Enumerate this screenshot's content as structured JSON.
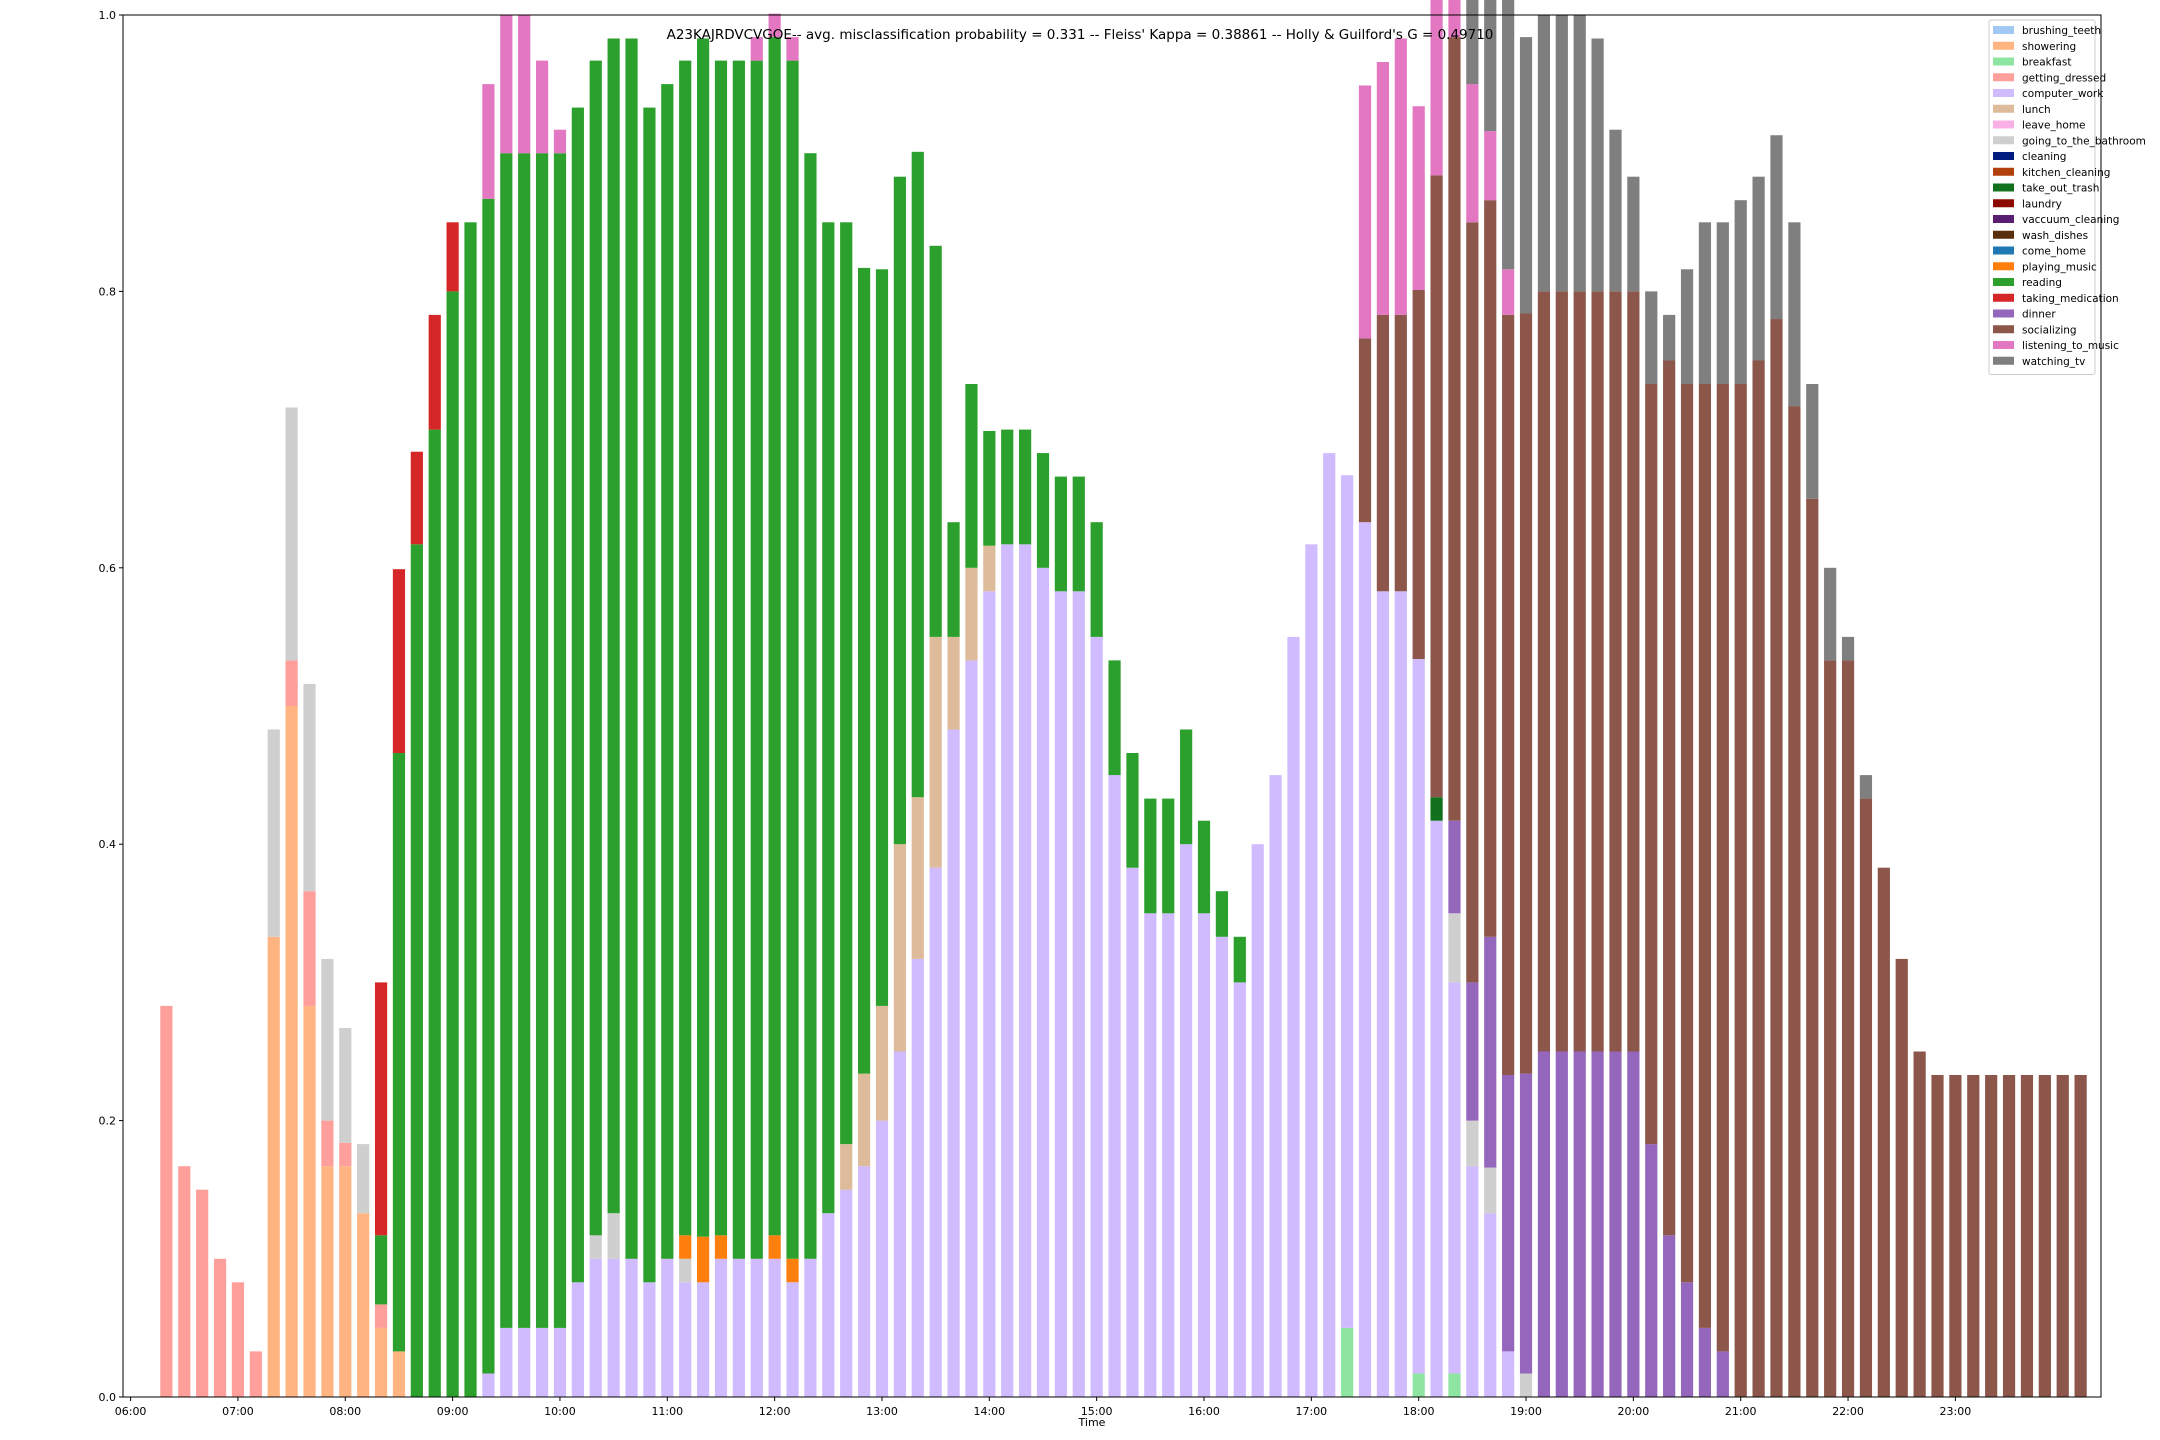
{
  "chart_data": {
    "type": "bar",
    "stacked": true,
    "title": "A23KAJRDVCVGOE-- avg. misclassification probability = 0.331 -- Fleiss' Kappa = 0.38861 -- Holly & Guilford's G = 0.49710",
    "xlabel": "Time",
    "ylabel": "",
    "ylim": [
      0,
      1.0
    ],
    "yticks": [
      "0.0",
      "0.2",
      "0.4",
      "0.6",
      "0.8",
      "1.0"
    ],
    "xticks": [
      "06:00",
      "07:00",
      "08:00",
      "09:00",
      "10:00",
      "11:00",
      "12:00",
      "13:00",
      "14:00",
      "15:00",
      "16:00",
      "17:00",
      "18:00",
      "19:00",
      "20:00",
      "21:00",
      "22:00",
      "23:00"
    ],
    "x_start": "06:00",
    "bin_minutes": 10,
    "legend_position": "top-right",
    "grid": false,
    "series": [
      {
        "name": "brushing_teeth",
        "color": "#a1c9f4",
        "values": []
      },
      {
        "name": "showering",
        "color": "#ffb482",
        "values": [
          [
            7,
            0.333
          ],
          [
            8,
            0.5
          ],
          [
            9,
            0.283
          ],
          [
            10,
            0.167
          ],
          [
            11,
            0.167
          ],
          [
            12,
            0.133
          ],
          [
            13,
            0.05
          ],
          [
            14,
            0.033
          ]
        ]
      },
      {
        "name": "breakfast",
        "color": "#8de5a1",
        "values": [
          [
            67,
            0.05
          ],
          [
            71,
            0.017
          ],
          [
            73,
            0.017
          ]
        ]
      },
      {
        "name": "getting_dressed",
        "color": "#ff9f9b",
        "values": [
          [
            1,
            0.283
          ],
          [
            2,
            0.167
          ],
          [
            3,
            0.15
          ],
          [
            4,
            0.1
          ],
          [
            5,
            0.083
          ],
          [
            6,
            0.033
          ],
          [
            8,
            0.033
          ],
          [
            9,
            0.083
          ],
          [
            10,
            0.033
          ],
          [
            11,
            0.017
          ],
          [
            13,
            0.017
          ]
        ]
      },
      {
        "name": "computer_work",
        "color": "#d0bbff",
        "values": [
          [
            19,
            0.017
          ],
          [
            20,
            0.05
          ],
          [
            21,
            0.05
          ],
          [
            22,
            0.05
          ],
          [
            23,
            0.05
          ],
          [
            24,
            0.083
          ],
          [
            25,
            0.1
          ],
          [
            26,
            0.1
          ],
          [
            27,
            0.1
          ],
          [
            28,
            0.083
          ],
          [
            29,
            0.1
          ],
          [
            30,
            0.083
          ],
          [
            31,
            0.083
          ],
          [
            32,
            0.1
          ],
          [
            33,
            0.1
          ],
          [
            34,
            0.1
          ],
          [
            35,
            0.1
          ],
          [
            36,
            0.083
          ],
          [
            37,
            0.1
          ],
          [
            38,
            0.133
          ],
          [
            39,
            0.15
          ],
          [
            40,
            0.167
          ],
          [
            41,
            0.2
          ],
          [
            42,
            0.25
          ],
          [
            43,
            0.317
          ],
          [
            44,
            0.383
          ],
          [
            45,
            0.483
          ],
          [
            46,
            0.533
          ],
          [
            47,
            0.583
          ],
          [
            48,
            0.617
          ],
          [
            49,
            0.617
          ],
          [
            50,
            0.6
          ],
          [
            51,
            0.583
          ],
          [
            52,
            0.583
          ],
          [
            53,
            0.55
          ],
          [
            54,
            0.45
          ],
          [
            55,
            0.383
          ],
          [
            56,
            0.35
          ],
          [
            57,
            0.35
          ],
          [
            58,
            0.4
          ],
          [
            59,
            0.35
          ],
          [
            60,
            0.333
          ],
          [
            61,
            0.3
          ],
          [
            62,
            0.4
          ],
          [
            63,
            0.45
          ],
          [
            64,
            0.55
          ],
          [
            65,
            0.617
          ],
          [
            66,
            0.683
          ],
          [
            67,
            0.617
          ],
          [
            68,
            0.633
          ],
          [
            69,
            0.583
          ],
          [
            70,
            0.583
          ],
          [
            71,
            0.517
          ],
          [
            72,
            0.417
          ],
          [
            73,
            0.283
          ],
          [
            74,
            0.167
          ],
          [
            75,
            0.133
          ],
          [
            76,
            0.033
          ]
        ]
      },
      {
        "name": "lunch",
        "color": "#debb9b",
        "values": [
          [
            39,
            0.033
          ],
          [
            40,
            0.067
          ],
          [
            41,
            0.083
          ],
          [
            42,
            0.15
          ],
          [
            43,
            0.117
          ],
          [
            44,
            0.167
          ],
          [
            45,
            0.067
          ],
          [
            46,
            0.067
          ],
          [
            47,
            0.033
          ],
          [
            48,
            0.0
          ]
        ]
      },
      {
        "name": "leave_home",
        "color": "#fab0e4",
        "values": []
      },
      {
        "name": "going_to_the_bathroom",
        "color": "#cfcfcf",
        "values": [
          [
            7,
            0.15
          ],
          [
            8,
            0.183
          ],
          [
            9,
            0.15
          ],
          [
            10,
            0.117
          ],
          [
            11,
            0.083
          ],
          [
            12,
            0.05
          ],
          [
            25,
            0.017
          ],
          [
            26,
            0.033
          ],
          [
            30,
            0.017
          ],
          [
            73,
            0.05
          ],
          [
            74,
            0.033
          ],
          [
            75,
            0.033
          ],
          [
            77,
            0.017
          ]
        ]
      },
      {
        "name": "cleaning",
        "color": "#001c7f",
        "values": []
      },
      {
        "name": "kitchen_cleaning",
        "color": "#b1400d",
        "values": []
      },
      {
        "name": "take_out_trash",
        "color": "#12711c",
        "values": [
          [
            72,
            0.017
          ]
        ]
      },
      {
        "name": "laundry",
        "color": "#8c0800",
        "values": []
      },
      {
        "name": "vaccuum_cleaning",
        "color": "#591e71",
        "values": []
      },
      {
        "name": "wash_dishes",
        "color": "#592f0d",
        "values": []
      },
      {
        "name": "come_home",
        "color": "#1f77b4",
        "values": []
      },
      {
        "name": "playing_music",
        "color": "#ff7f0e",
        "values": [
          [
            30,
            0.017
          ],
          [
            31,
            0.033
          ],
          [
            32,
            0.017
          ],
          [
            35,
            0.017
          ],
          [
            36,
            0.017
          ]
        ]
      },
      {
        "name": "reading",
        "color": "#2ca02c",
        "values": [
          [
            13,
            0.05
          ],
          [
            14,
            0.433
          ],
          [
            15,
            0.617
          ],
          [
            16,
            0.7
          ],
          [
            17,
            0.8
          ],
          [
            18,
            0.85
          ],
          [
            19,
            0.85
          ],
          [
            20,
            0.85
          ],
          [
            21,
            0.85
          ],
          [
            22,
            0.85
          ],
          [
            23,
            0.85
          ],
          [
            24,
            0.85
          ],
          [
            25,
            0.85
          ],
          [
            26,
            0.85
          ],
          [
            27,
            0.883
          ],
          [
            28,
            0.85
          ],
          [
            29,
            0.85
          ],
          [
            30,
            0.85
          ],
          [
            31,
            0.867
          ],
          [
            32,
            0.85
          ],
          [
            33,
            0.867
          ],
          [
            34,
            0.867
          ],
          [
            35,
            0.867
          ],
          [
            36,
            0.867
          ],
          [
            37,
            0.8
          ],
          [
            38,
            0.717
          ],
          [
            39,
            0.667
          ],
          [
            40,
            0.583
          ],
          [
            41,
            0.533
          ],
          [
            42,
            0.483
          ],
          [
            43,
            0.467
          ],
          [
            44,
            0.283
          ],
          [
            45,
            0.083
          ],
          [
            46,
            0.133
          ],
          [
            47,
            0.083
          ],
          [
            48,
            0.083
          ],
          [
            49,
            0.083
          ],
          [
            50,
            0.083
          ],
          [
            51,
            0.083
          ],
          [
            52,
            0.083
          ],
          [
            53,
            0.083
          ],
          [
            54,
            0.083
          ],
          [
            55,
            0.083
          ],
          [
            56,
            0.083
          ],
          [
            57,
            0.083
          ],
          [
            58,
            0.083
          ],
          [
            59,
            0.067
          ],
          [
            60,
            0.033
          ],
          [
            61,
            0.033
          ]
        ]
      },
      {
        "name": "taking_medication",
        "color": "#d62728",
        "values": [
          [
            13,
            0.183
          ],
          [
            14,
            0.133
          ],
          [
            15,
            0.067
          ],
          [
            16,
            0.083
          ],
          [
            17,
            0.05
          ]
        ]
      },
      {
        "name": "dinner",
        "color": "#9467bd",
        "values": [
          [
            73,
            0.067
          ],
          [
            74,
            0.1
          ],
          [
            75,
            0.167
          ],
          [
            76,
            0.2
          ],
          [
            77,
            0.217
          ],
          [
            78,
            0.25
          ],
          [
            79,
            0.25
          ],
          [
            80,
            0.25
          ],
          [
            81,
            0.25
          ],
          [
            82,
            0.25
          ],
          [
            83,
            0.25
          ],
          [
            84,
            0.183
          ],
          [
            85,
            0.117
          ],
          [
            86,
            0.083
          ],
          [
            87,
            0.05
          ],
          [
            88,
            0.033
          ]
        ]
      },
      {
        "name": "socializing",
        "color": "#8c564b",
        "values": [
          [
            68,
            0.133
          ],
          [
            69,
            0.2
          ],
          [
            70,
            0.2
          ],
          [
            71,
            0.267
          ],
          [
            72,
            0.45
          ],
          [
            73,
            0.567
          ],
          [
            74,
            0.55
          ],
          [
            75,
            0.533
          ],
          [
            76,
            0.55
          ],
          [
            77,
            0.55
          ],
          [
            78,
            0.55
          ],
          [
            79,
            0.55
          ],
          [
            80,
            0.55
          ],
          [
            81,
            0.55
          ],
          [
            82,
            0.55
          ],
          [
            83,
            0.55
          ],
          [
            84,
            0.55
          ],
          [
            85,
            0.633
          ],
          [
            86,
            0.65
          ],
          [
            87,
            0.683
          ],
          [
            88,
            0.7
          ],
          [
            89,
            0.733
          ],
          [
            90,
            0.75
          ],
          [
            91,
            0.78
          ],
          [
            92,
            0.717
          ],
          [
            93,
            0.65
          ],
          [
            94,
            0.533
          ],
          [
            95,
            0.533
          ],
          [
            96,
            0.433
          ],
          [
            97,
            0.383
          ],
          [
            98,
            0.317
          ],
          [
            99,
            0.25
          ],
          [
            100,
            0.233
          ],
          [
            101,
            0.233
          ],
          [
            102,
            0.233
          ],
          [
            103,
            0.233
          ],
          [
            104,
            0.233
          ],
          [
            105,
            0.233
          ],
          [
            106,
            0.233
          ],
          [
            107,
            0.233
          ],
          [
            108,
            0.233
          ]
        ]
      },
      {
        "name": "listening_to_music",
        "color": "#e377c2",
        "values": [
          [
            19,
            0.083
          ],
          [
            20,
            0.1
          ],
          [
            21,
            0.1
          ],
          [
            22,
            0.067
          ],
          [
            23,
            0.017
          ],
          [
            34,
            0.017
          ],
          [
            35,
            0.017
          ],
          [
            36,
            0.017
          ],
          [
            68,
            0.183
          ],
          [
            69,
            0.183
          ],
          [
            70,
            0.2
          ],
          [
            71,
            0.133
          ],
          [
            72,
            0.133
          ],
          [
            73,
            0.1
          ],
          [
            74,
            0.1
          ],
          [
            75,
            0.05
          ],
          [
            76,
            0.033
          ]
        ]
      },
      {
        "name": "watching_tv",
        "color": "#7f7f7f",
        "values": [
          [
            73,
            0.017
          ],
          [
            74,
            0.083
          ],
          [
            75,
            0.133
          ],
          [
            76,
            0.2
          ],
          [
            77,
            0.2
          ],
          [
            78,
            0.2
          ],
          [
            79,
            0.2
          ],
          [
            80,
            0.2
          ],
          [
            81,
            0.183
          ],
          [
            82,
            0.117
          ],
          [
            83,
            0.083
          ],
          [
            84,
            0.067
          ],
          [
            85,
            0.033
          ],
          [
            86,
            0.083
          ],
          [
            87,
            0.117
          ],
          [
            88,
            0.117
          ],
          [
            89,
            0.133
          ],
          [
            90,
            0.133
          ],
          [
            91,
            0.133
          ],
          [
            92,
            0.133
          ],
          [
            93,
            0.083
          ],
          [
            94,
            0.067
          ],
          [
            95,
            0.017
          ],
          [
            96,
            0.017
          ]
        ]
      }
    ]
  }
}
